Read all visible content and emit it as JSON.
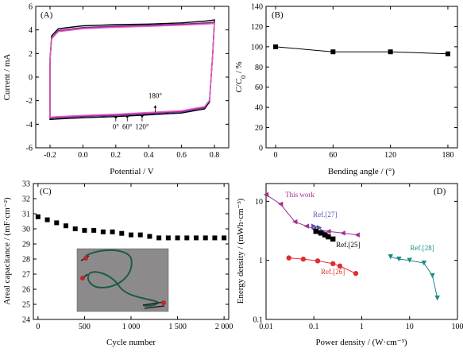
{
  "chart_data": [
    {
      "panel": "(A)",
      "type": "line",
      "xlabel": "Potential / V",
      "ylabel": "Current / mA",
      "xlim": [
        -0.2,
        0.8
      ],
      "ylim": [
        -6,
        6
      ],
      "xticks": [
        "-0.2",
        "0.0",
        "0.2",
        "0.4",
        "0.6",
        "0.8"
      ],
      "yticks": [
        "-6",
        "-4",
        "-2",
        "0",
        "2",
        "4",
        "6"
      ],
      "series": [
        {
          "name": "0°",
          "color": "#000000",
          "upper": [
            [
              -0.2,
              1.6
            ],
            [
              -0.19,
              3.5
            ],
            [
              -0.15,
              4.1
            ],
            [
              0.0,
              4.35
            ],
            [
              0.2,
              4.45
            ],
            [
              0.4,
              4.5
            ],
            [
              0.6,
              4.6
            ],
            [
              0.75,
              4.75
            ],
            [
              0.8,
              4.85
            ]
          ],
          "lower": [
            [
              0.8,
              4.85
            ],
            [
              0.79,
              2.0
            ],
            [
              0.77,
              -2.1
            ],
            [
              0.74,
              -2.7
            ],
            [
              0.6,
              -3.05
            ],
            [
              0.4,
              -3.2
            ],
            [
              0.2,
              -3.35
            ],
            [
              0.0,
              -3.45
            ],
            [
              -0.15,
              -3.55
            ],
            [
              -0.2,
              -3.6
            ],
            [
              -0.2,
              1.6
            ]
          ]
        },
        {
          "name": "60°",
          "color": "#3a3ab5",
          "upper": [
            [
              -0.2,
              1.5
            ],
            [
              -0.19,
              3.3
            ],
            [
              -0.15,
              3.95
            ],
            [
              0.0,
              4.2
            ],
            [
              0.2,
              4.32
            ],
            [
              0.4,
              4.4
            ],
            [
              0.6,
              4.5
            ],
            [
              0.75,
              4.6
            ],
            [
              0.8,
              4.65
            ]
          ],
          "lower": [
            [
              0.8,
              4.65
            ],
            [
              0.79,
              2.0
            ],
            [
              0.77,
              -2.0
            ],
            [
              0.74,
              -2.6
            ],
            [
              0.6,
              -2.95
            ],
            [
              0.4,
              -3.1
            ],
            [
              0.2,
              -3.25
            ],
            [
              0.0,
              -3.35
            ],
            [
              -0.15,
              -3.45
            ],
            [
              -0.2,
              -3.5
            ],
            [
              -0.2,
              1.5
            ]
          ]
        },
        {
          "name": "120°",
          "color": "#c71585",
          "upper": [
            [
              -0.2,
              1.5
            ],
            [
              -0.19,
              3.3
            ],
            [
              -0.15,
              3.9
            ],
            [
              0.0,
              4.15
            ],
            [
              0.2,
              4.28
            ],
            [
              0.4,
              4.35
            ],
            [
              0.6,
              4.45
            ],
            [
              0.75,
              4.55
            ],
            [
              0.8,
              4.6
            ]
          ],
          "lower": [
            [
              0.8,
              4.6
            ],
            [
              0.79,
              2.0
            ],
            [
              0.77,
              -2.0
            ],
            [
              0.74,
              -2.55
            ],
            [
              0.6,
              -2.9
            ],
            [
              0.4,
              -3.05
            ],
            [
              0.2,
              -3.2
            ],
            [
              0.0,
              -3.3
            ],
            [
              -0.15,
              -3.4
            ],
            [
              -0.2,
              -3.45
            ],
            [
              -0.2,
              1.5
            ]
          ]
        },
        {
          "name": "180°",
          "color": "#e05fbf",
          "upper": [
            [
              -0.2,
              1.45
            ],
            [
              -0.19,
              3.25
            ],
            [
              -0.15,
              3.85
            ],
            [
              0.0,
              4.1
            ],
            [
              0.2,
              4.22
            ],
            [
              0.4,
              4.3
            ],
            [
              0.6,
              4.4
            ],
            [
              0.75,
              4.5
            ],
            [
              0.8,
              4.55
            ]
          ],
          "lower": [
            [
              0.8,
              4.55
            ],
            [
              0.79,
              2.0
            ],
            [
              0.77,
              -1.95
            ],
            [
              0.74,
              -2.5
            ],
            [
              0.6,
              -2.85
            ],
            [
              0.4,
              -3.0
            ],
            [
              0.2,
              -3.15
            ],
            [
              0.0,
              -3.25
            ],
            [
              -0.15,
              -3.35
            ],
            [
              -0.2,
              -3.4
            ],
            [
              -0.2,
              1.45
            ]
          ]
        }
      ],
      "annotations": [
        {
          "text": "0°",
          "x": 0.2,
          "y": -4.0,
          "arrow_to": -3.3
        },
        {
          "text": "60°",
          "x": 0.27,
          "y": -4.0,
          "arrow_to": -3.25
        },
        {
          "text": "120°",
          "x": 0.36,
          "y": -4.0,
          "arrow_to": -3.2
        },
        {
          "text": "180°",
          "x": 0.44,
          "y": -1.8,
          "arrow_to": -3.0
        }
      ]
    },
    {
      "panel": "(B)",
      "type": "line",
      "xlabel": "Bending angle / (°)",
      "ylabel": "C/C0 / %",
      "xlim": [
        -10,
        190
      ],
      "ylim": [
        0,
        140
      ],
      "xticks": [
        "0",
        "60",
        "120",
        "180"
      ],
      "yticks": [
        "0",
        "20",
        "40",
        "60",
        "80",
        "100",
        "120",
        "140"
      ],
      "x": [
        0,
        60,
        120,
        180
      ],
      "values": [
        100,
        95,
        95,
        93
      ]
    },
    {
      "panel": "(C)",
      "type": "scatter",
      "xlabel": "Cycle number",
      "ylabel": "Areal capacitance / (mF·cm⁻²)",
      "xlim": [
        -50,
        2050
      ],
      "ylim": [
        24,
        33
      ],
      "xticks": [
        "0",
        "500",
        "1 000",
        "1 500",
        "2 000"
      ],
      "yticks": [
        "24",
        "25",
        "26",
        "27",
        "28",
        "29",
        "30",
        "31",
        "32",
        "33"
      ],
      "x": [
        0,
        100,
        200,
        300,
        400,
        500,
        600,
        700,
        800,
        900,
        1000,
        1100,
        1200,
        1300,
        1400,
        1500,
        1600,
        1700,
        1800,
        1900,
        2000
      ],
      "values": [
        30.8,
        30.6,
        30.4,
        30.2,
        30.0,
        29.9,
        29.9,
        29.8,
        29.8,
        29.7,
        29.6,
        29.6,
        29.5,
        29.4,
        29.4,
        29.4,
        29.4,
        29.4,
        29.4,
        29.4,
        29.4
      ]
    },
    {
      "panel": "(D)",
      "type": "scatter",
      "xlabel": "Power density / (W·cm⁻³)",
      "ylabel": "Energy density / (mWh·cm⁻³)",
      "xscale": "log",
      "yscale": "log",
      "xlim": [
        0.01,
        100
      ],
      "ylim": [
        0.1,
        20
      ],
      "xticks": [
        "0.01",
        "0.1",
        "1",
        "10",
        "100"
      ],
      "yticks": [
        "0.1",
        "1",
        "10"
      ],
      "series": [
        {
          "name": "This work",
          "color": "#a0308f",
          "marker": "triangle-left",
          "x": [
            0.01,
            0.02,
            0.04,
            0.07,
            0.1,
            0.2,
            0.4,
            0.8
          ],
          "values": [
            13,
            9,
            4.5,
            3.8,
            3.4,
            3.1,
            2.9,
            2.7
          ]
        },
        {
          "name": "Ref.[27]",
          "color": "#4a55b0",
          "marker": "triangle-right",
          "x": [
            0.1,
            0.13,
            0.16,
            0.2
          ],
          "values": [
            3.8,
            3.6,
            3.0,
            2.7
          ]
        },
        {
          "name": "Ref.[25]",
          "color": "#000000",
          "marker": "square",
          "x": [
            0.11,
            0.14,
            0.17,
            0.2,
            0.25
          ],
          "values": [
            3.1,
            2.9,
            2.7,
            2.5,
            2.3
          ]
        },
        {
          "name": "Ref.[26]",
          "color": "#e02d2d",
          "marker": "circle",
          "x": [
            0.03,
            0.06,
            0.12,
            0.25,
            0.35,
            0.75
          ],
          "values": [
            1.1,
            1.05,
            0.98,
            0.88,
            0.8,
            0.6
          ]
        },
        {
          "name": "Ref.[28]",
          "color": "#1a8c85",
          "marker": "triangle-down",
          "x": [
            4,
            6,
            10,
            20,
            30,
            38
          ],
          "values": [
            1.15,
            1.05,
            1.0,
            0.9,
            0.55,
            0.23
          ]
        }
      ]
    }
  ]
}
